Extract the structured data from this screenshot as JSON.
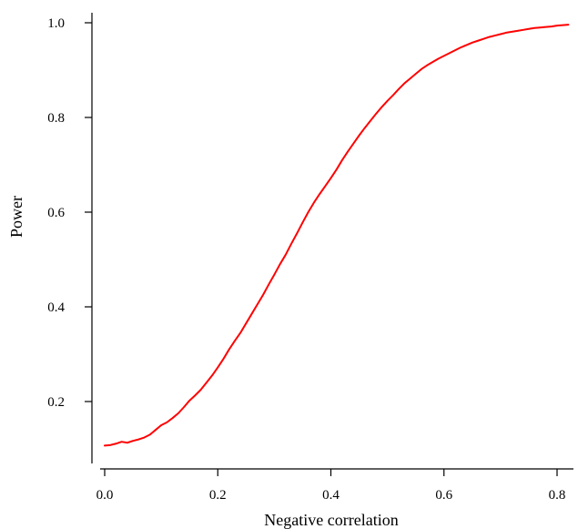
{
  "chart_data": {
    "type": "line",
    "title": "",
    "xlabel": "Negative correlation",
    "ylabel": "Power",
    "xlim": [
      0.0,
      0.82
    ],
    "ylim": [
      0.08,
      1.0
    ],
    "x_ticks": [
      0.0,
      0.2,
      0.4,
      0.6,
      0.8
    ],
    "x_tick_labels": [
      "0.0",
      "0.2",
      "0.4",
      "0.6",
      "0.8"
    ],
    "y_ticks": [
      0.2,
      0.4,
      0.6,
      0.8,
      1.0
    ],
    "y_tick_labels": [
      "0.2",
      "0.4",
      "0.6",
      "0.8",
      "1.0"
    ],
    "grid": false,
    "series": [
      {
        "color": "#ff0000",
        "x": [
          0.0,
          0.01,
          0.02,
          0.03,
          0.04,
          0.05,
          0.06,
          0.07,
          0.08,
          0.09,
          0.1,
          0.11,
          0.12,
          0.13,
          0.14,
          0.15,
          0.16,
          0.17,
          0.18,
          0.19,
          0.2,
          0.21,
          0.22,
          0.23,
          0.24,
          0.25,
          0.26,
          0.27,
          0.28,
          0.29,
          0.3,
          0.31,
          0.32,
          0.33,
          0.34,
          0.35,
          0.36,
          0.37,
          0.38,
          0.39,
          0.4,
          0.41,
          0.42,
          0.43,
          0.44,
          0.45,
          0.46,
          0.47,
          0.48,
          0.49,
          0.5,
          0.51,
          0.52,
          0.53,
          0.54,
          0.55,
          0.56,
          0.57,
          0.58,
          0.59,
          0.6,
          0.61,
          0.62,
          0.63,
          0.64,
          0.65,
          0.66,
          0.67,
          0.68,
          0.69,
          0.7,
          0.71,
          0.72,
          0.73,
          0.74,
          0.75,
          0.76,
          0.77,
          0.78,
          0.79,
          0.8,
          0.81,
          0.82
        ],
        "values": [
          0.107,
          0.108,
          0.111,
          0.115,
          0.113,
          0.117,
          0.12,
          0.124,
          0.13,
          0.14,
          0.15,
          0.156,
          0.165,
          0.175,
          0.188,
          0.202,
          0.213,
          0.225,
          0.24,
          0.255,
          0.272,
          0.29,
          0.31,
          0.328,
          0.345,
          0.365,
          0.385,
          0.405,
          0.425,
          0.447,
          0.468,
          0.49,
          0.51,
          0.533,
          0.555,
          0.578,
          0.6,
          0.62,
          0.638,
          0.655,
          0.672,
          0.69,
          0.71,
          0.728,
          0.745,
          0.762,
          0.778,
          0.793,
          0.808,
          0.822,
          0.835,
          0.847,
          0.86,
          0.872,
          0.882,
          0.892,
          0.902,
          0.91,
          0.917,
          0.924,
          0.93,
          0.936,
          0.942,
          0.948,
          0.953,
          0.958,
          0.962,
          0.966,
          0.97,
          0.973,
          0.976,
          0.979,
          0.981,
          0.983,
          0.985,
          0.987,
          0.989,
          0.99,
          0.991,
          0.992,
          0.994,
          0.995,
          0.996
        ]
      }
    ]
  }
}
